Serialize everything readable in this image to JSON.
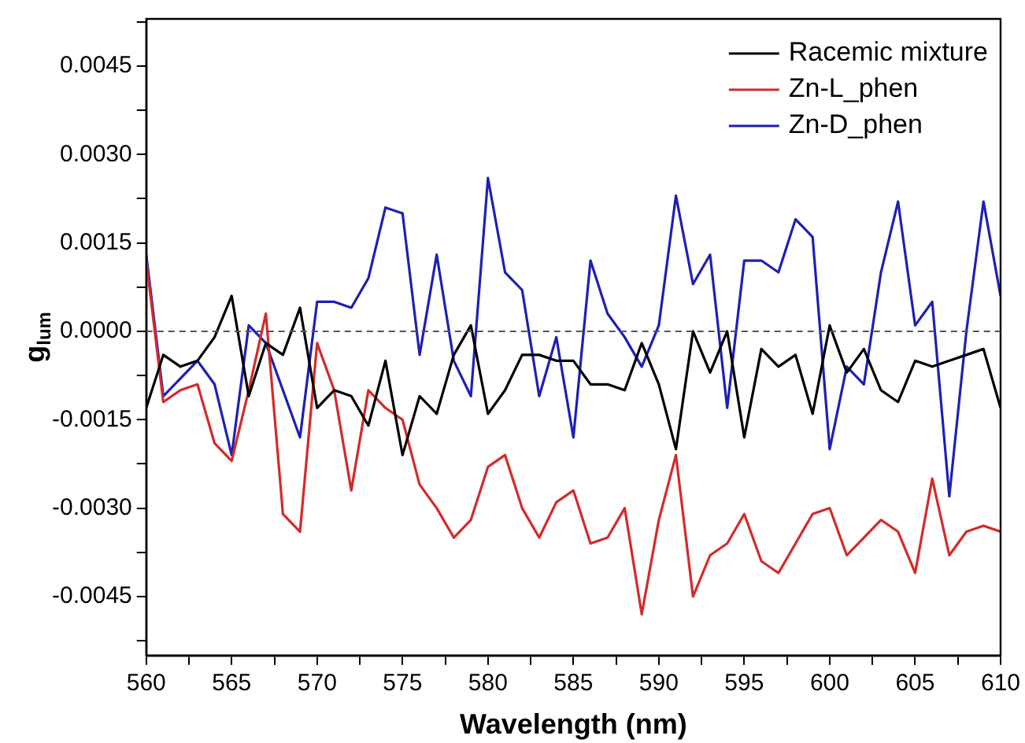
{
  "chart_data": {
    "type": "line",
    "xlabel": "Wavelength (nm)",
    "ylabel": "g$_{lum}$",
    "x": [
      560,
      561,
      562,
      563,
      564,
      565,
      566,
      567,
      568,
      569,
      570,
      571,
      572,
      573,
      574,
      575,
      576,
      577,
      578,
      579,
      580,
      581,
      582,
      583,
      584,
      585,
      586,
      587,
      588,
      589,
      590,
      591,
      592,
      593,
      594,
      595,
      596,
      597,
      598,
      599,
      600,
      601,
      602,
      603,
      604,
      605,
      606,
      607,
      608,
      609,
      610
    ],
    "series": [
      {
        "name": "Racemic mixture",
        "color": "#000000",
        "values": [
          -0.0013,
          -0.0004,
          -0.0006,
          -0.0005,
          -0.0001,
          0.0006,
          -0.0011,
          -0.0002,
          -0.0004,
          0.0004,
          -0.0013,
          -0.001,
          -0.0011,
          -0.0016,
          -0.0005,
          -0.0021,
          -0.0011,
          -0.0014,
          -0.0004,
          0.0001,
          -0.0014,
          -0.001,
          -0.0004,
          -0.0004,
          -0.0005,
          -0.0005,
          -0.0009,
          -0.0009,
          -0.001,
          -0.0002,
          -0.0009,
          -0.002,
          0.0,
          -0.0007,
          0.0,
          -0.0018,
          -0.0003,
          -0.0006,
          -0.0004,
          -0.0014,
          0.0001,
          -0.0007,
          -0.0003,
          -0.001,
          -0.0012,
          -0.0005,
          -0.0006,
          -0.0005,
          -0.0004,
          -0.0003,
          -0.0013
        ]
      },
      {
        "name": "Zn-L_phen",
        "color": "#d42a2a",
        "values": [
          0.0012,
          -0.0012,
          -0.001,
          -0.0009,
          -0.0019,
          -0.0022,
          -0.001,
          0.0003,
          -0.0031,
          -0.0034,
          -0.0002,
          -0.001,
          -0.0027,
          -0.001,
          -0.0013,
          -0.0015,
          -0.0026,
          -0.003,
          -0.0035,
          -0.0032,
          -0.0023,
          -0.0021,
          -0.003,
          -0.0035,
          -0.0029,
          -0.0027,
          -0.0036,
          -0.0035,
          -0.003,
          -0.0048,
          -0.0032,
          -0.0021,
          -0.0045,
          -0.0038,
          -0.0036,
          -0.0031,
          -0.0039,
          -0.0041,
          -0.0036,
          -0.0031,
          -0.003,
          -0.0038,
          -0.0035,
          -0.0032,
          -0.0034,
          -0.0041,
          -0.0025,
          -0.0038,
          -0.0034,
          -0.0033,
          -0.0034
        ]
      },
      {
        "name": "Zn-D_phen",
        "color": "#1f1fb4",
        "values": [
          0.0013,
          -0.0011,
          -0.0008,
          -0.0005,
          -0.0009,
          -0.0021,
          0.0001,
          -0.0002,
          -0.001,
          -0.0018,
          0.0005,
          0.0005,
          0.0004,
          0.0009,
          0.0021,
          0.002,
          -0.0004,
          0.0013,
          -0.0005,
          -0.0011,
          0.0026,
          0.001,
          0.0007,
          -0.0011,
          -0.0001,
          -0.0018,
          0.0012,
          0.0003,
          -0.0001,
          -0.0006,
          0.0001,
          0.0023,
          0.0008,
          0.0013,
          -0.0013,
          0.0012,
          0.0012,
          0.001,
          0.0019,
          0.0016,
          -0.002,
          -0.0006,
          -0.0009,
          0.001,
          0.0022,
          0.0001,
          0.0005,
          -0.0028,
          0.0,
          0.0022,
          0.0006
        ]
      }
    ],
    "xlim": [
      560,
      610
    ],
    "xticks": [
      560,
      {
        "value": 562.5,
        "label": null
      },
      565,
      {
        "value": 567.5,
        "label": null
      },
      570,
      {
        "value": 572.5,
        "label": null
      },
      575,
      {
        "value": 577.5,
        "label": null
      },
      580,
      {
        "value": 582.5,
        "label": null
      },
      585,
      {
        "value": 587.5,
        "label": null
      },
      590,
      {
        "value": 592.5,
        "label": null
      },
      595,
      {
        "value": 597.5,
        "label": null
      },
      600,
      {
        "value": 602.5,
        "label": null
      },
      605,
      {
        "value": 607.5,
        "label": null
      },
      610
    ],
    "ylim": [
      -0.0055,
      0.0053
    ],
    "yticks": [
      {
        "value": -0.00525,
        "label": null
      },
      {
        "value": -0.0045,
        "label": "-0.0045"
      },
      {
        "value": -0.00375,
        "label": null
      },
      {
        "value": -0.003,
        "label": "-0.0030"
      },
      {
        "value": -0.00225,
        "label": null
      },
      {
        "value": -0.0015,
        "label": "-0.0015"
      },
      {
        "value": -0.00075,
        "label": null
      },
      {
        "value": 0,
        "label": "0.0000"
      },
      {
        "value": 0.00075,
        "label": null
      },
      {
        "value": 0.0015,
        "label": "0.0015"
      },
      {
        "value": 0.00225,
        "label": null
      },
      {
        "value": 0.003,
        "label": "0.0030"
      },
      {
        "value": 0.00375,
        "label": null
      },
      {
        "value": 0.0045,
        "label": "0.0045"
      },
      {
        "value": 0.00525,
        "label": null
      }
    ],
    "ref_lines": [
      {
        "axis": "y",
        "value": 0,
        "color": "#555555",
        "line_style": "dashed"
      }
    ],
    "legend": "top right",
    "grid": false,
    "marker": "none",
    "line_style": "solid"
  }
}
